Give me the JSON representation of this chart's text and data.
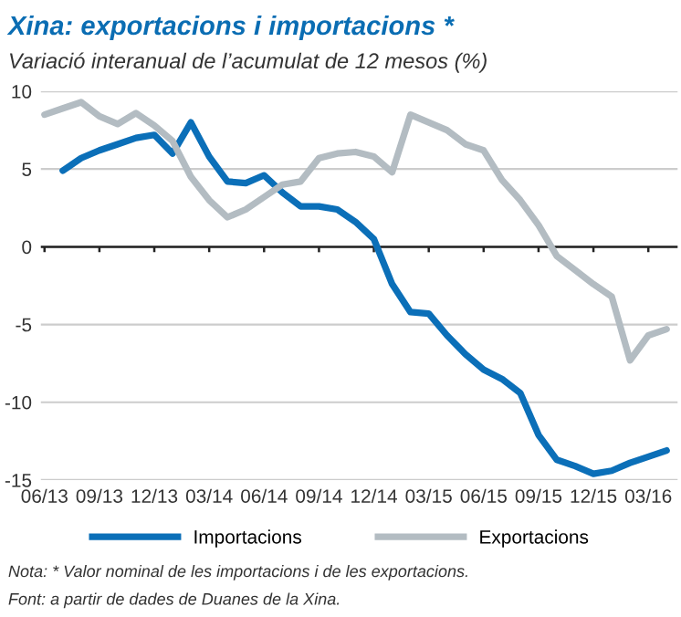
{
  "chart_data": {
    "type": "line",
    "title": "Xina: exportacions i importacions *",
    "subtitle": "Variació interanual de l’acumulat de 12 mesos (%)",
    "categories": [
      "06/13",
      null,
      null,
      "09/13",
      null,
      null,
      "12/13",
      null,
      null,
      "03/14",
      null,
      null,
      "06/14",
      null,
      null,
      "09/14",
      null,
      null,
      "12/14",
      null,
      null,
      "03/15",
      null,
      null,
      "06/15",
      null,
      null,
      "09/15",
      null,
      null,
      "12/15",
      null,
      null,
      "03/16",
      null
    ],
    "series": [
      {
        "name": "Importacions",
        "color": "#0b6fb8",
        "values": [
          null,
          4.9,
          5.7,
          6.2,
          6.6,
          7.0,
          7.2,
          6.0,
          8.0,
          5.8,
          4.2,
          4.1,
          4.6,
          3.5,
          2.6,
          2.6,
          2.4,
          1.6,
          0.5,
          -2.4,
          -4.2,
          -4.3,
          -5.7,
          -6.9,
          -7.9,
          -8.5,
          -9.4,
          -12.1,
          -13.7,
          -14.1,
          -14.6,
          -14.4,
          -13.9,
          -13.5,
          -13.1
        ]
      },
      {
        "name": "Exportacions",
        "color": "#b3bcc2",
        "values": [
          8.5,
          8.9,
          9.3,
          8.4,
          7.9,
          8.6,
          7.8,
          6.8,
          4.5,
          3.0,
          1.9,
          2.4,
          3.2,
          4.0,
          4.2,
          5.7,
          6.0,
          6.1,
          5.8,
          4.8,
          8.5,
          8.0,
          7.5,
          6.6,
          6.2,
          4.3,
          3.0,
          1.4,
          -0.6,
          -1.5,
          -2.4,
          -3.2,
          -7.3,
          -5.7,
          -5.3
        ]
      }
    ],
    "ylim": [
      -15,
      10
    ],
    "yticks": [
      -15,
      -10,
      -5,
      0,
      5,
      10
    ],
    "grid": "y",
    "legend": "bottom",
    "ref_lines": [
      {
        "axis": "y",
        "value": 0,
        "color": "#222222"
      }
    ],
    "annotations": [
      "Nota: * Valor nominal de les importacions i de les exportacions.",
      "Font: a partir de dades de Duanes de la Xina."
    ]
  }
}
